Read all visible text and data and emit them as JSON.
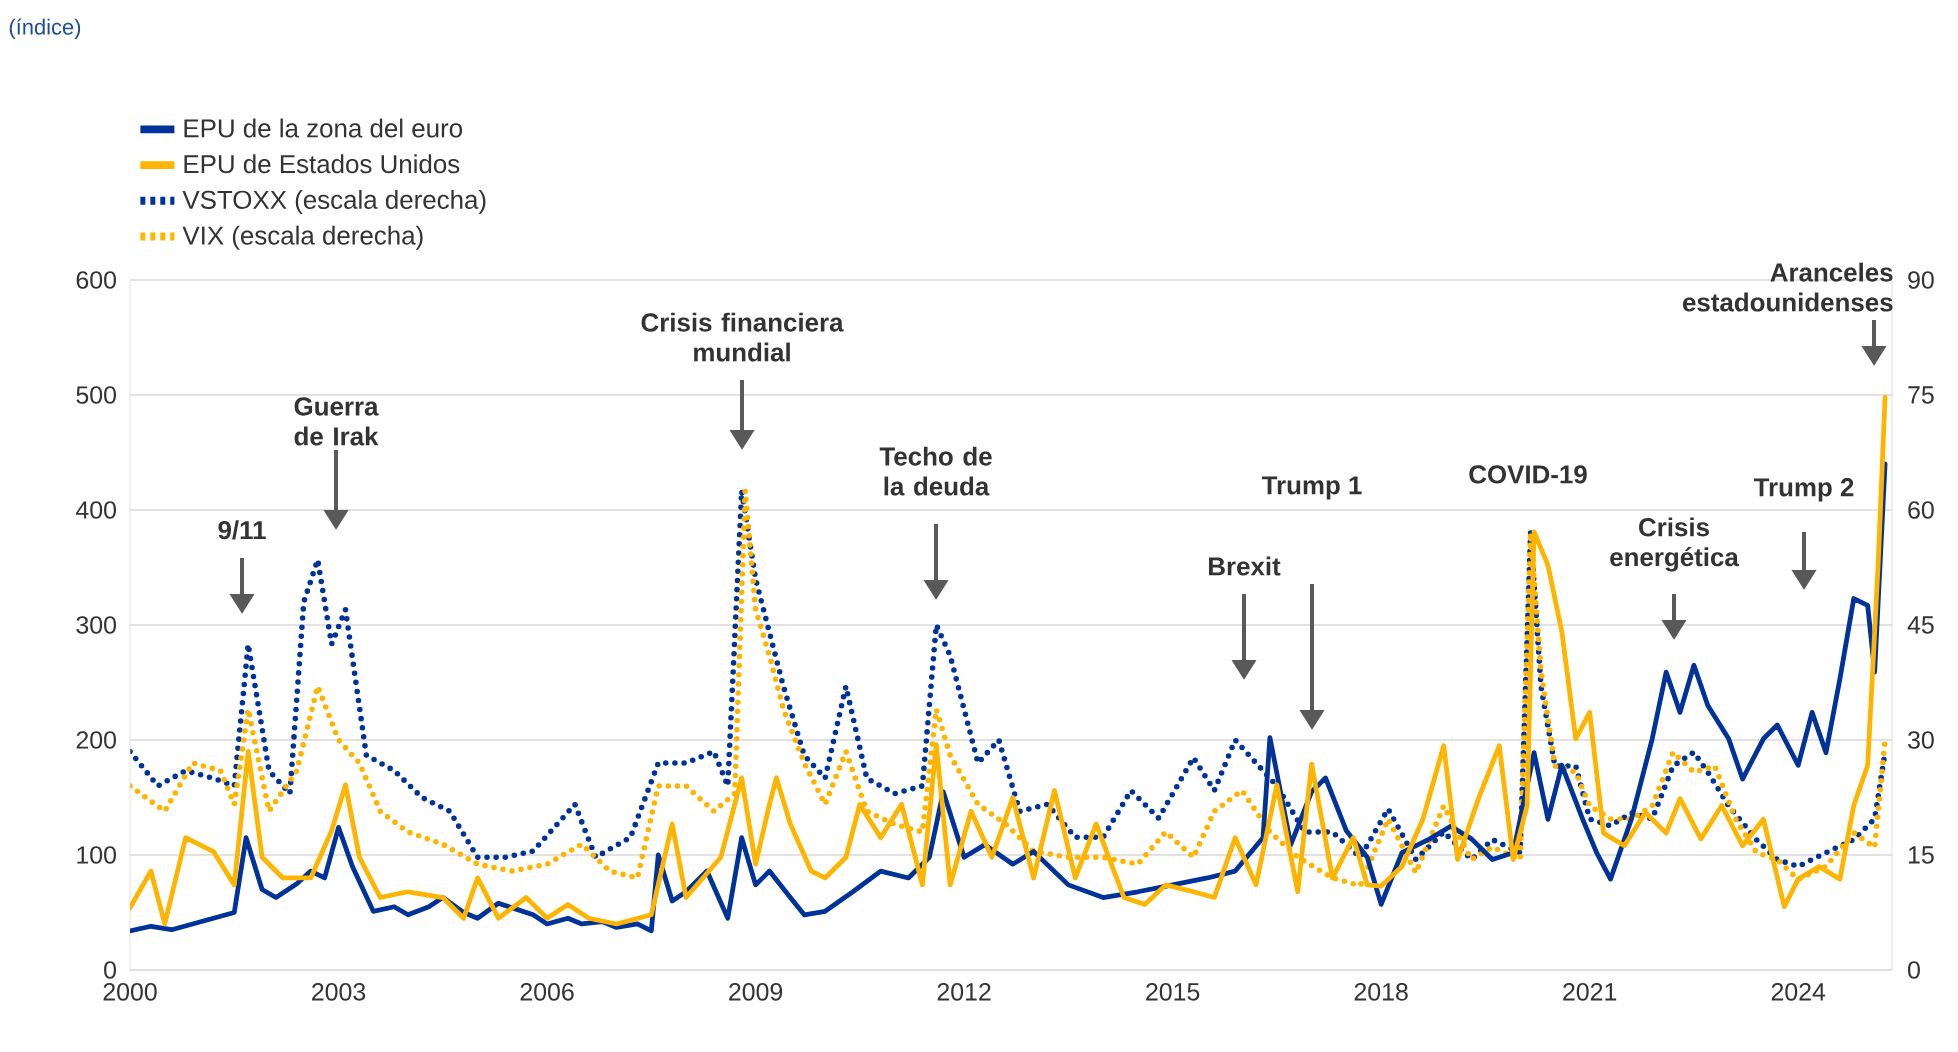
{
  "chart_data": {
    "type": "line",
    "xlim": [
      2000,
      2025.35
    ],
    "xticks": [
      2000,
      2003,
      2006,
      2009,
      2012,
      2015,
      2018,
      2021,
      2024
    ],
    "ylim": [
      0,
      600
    ],
    "yticks": [
      0,
      100,
      200,
      300,
      400,
      500,
      600
    ],
    "y2lim": [
      0,
      90
    ],
    "y2ticks": [
      0,
      15,
      30,
      45,
      60,
      75,
      90
    ],
    "grid": true,
    "legend": "top left",
    "annotations": [
      "(índice)",
      "9/11",
      "Guerra de Irak",
      "Crisis financiera mundial",
      "Techo de la deuda",
      "Brexit",
      "Trump 1",
      "COVID-19",
      "Crisis energética",
      "Trump 2",
      "Aranceles estadounidenses"
    ],
    "series": [
      {
        "name": "EPU de la zona del euro",
        "color": "#003399",
        "line_style": "solid",
        "x": [
          2000,
          2000.3,
          2000.6,
          2000.9,
          2001.2,
          2001.5,
          2001.67,
          2001.9,
          2002.1,
          2002.4,
          2002.6,
          2002.8,
          2003.0,
          2003.2,
          2003.5,
          2003.8,
          2004.0,
          2004.3,
          2004.5,
          2004.8,
          2005.0,
          2005.3,
          2005.5,
          2005.8,
          2006.0,
          2006.3,
          2006.5,
          2006.8,
          2007.0,
          2007.3,
          2007.5,
          2007.6,
          2007.8,
          2008.0,
          2008.3,
          2008.6,
          2008.8,
          2009.0,
          2009.2,
          2009.5,
          2009.7,
          2010.0,
          2010.4,
          2010.8,
          2011.2,
          2011.5,
          2011.7,
          2012.0,
          2012.3,
          2012.7,
          2013.0,
          2013.5,
          2014.0,
          2014.5,
          2015.0,
          2015.5,
          2015.9,
          2016.3,
          2016.4,
          2016.7,
          2017.0,
          2017.2,
          2017.5,
          2017.8,
          2018.0,
          2018.3,
          2018.7,
          2019.0,
          2019.3,
          2019.6,
          2019.9,
          2020.2,
          2020.4,
          2020.6,
          2020.9,
          2021.1,
          2021.3,
          2021.6,
          2021.9,
          2022.1,
          2022.3,
          2022.5,
          2022.7,
          2023.0,
          2023.2,
          2023.5,
          2023.7,
          2024.0,
          2024.2,
          2024.4,
          2024.6,
          2024.8,
          2025.0,
          2025.1,
          2025.25
        ],
        "values": [
          34,
          38,
          35,
          40,
          45,
          50,
          115,
          70,
          63,
          75,
          86,
          80,
          124,
          90,
          51,
          55,
          48,
          55,
          63,
          50,
          45,
          58,
          54,
          48,
          40,
          45,
          40,
          42,
          37,
          40,
          34,
          100,
          60,
          68,
          86,
          45,
          115,
          74,
          86,
          63,
          48,
          51,
          68,
          86,
          80,
          98,
          155,
          98,
          109,
          92,
          103,
          74,
          63,
          68,
          74,
          80,
          86,
          115,
          202,
          109,
          155,
          167,
          121,
          98,
          57,
          102,
          114,
          125,
          114,
          96,
          102,
          189,
          131,
          178,
          131,
          102,
          79,
          131,
          201,
          259,
          224,
          265,
          230,
          201,
          166,
          201,
          213,
          178,
          224,
          189,
          253,
          323,
          317,
          259,
          440
        ]
      },
      {
        "name": "EPU de Estados Unidos",
        "color": "#ffb400",
        "line_style": "solid",
        "x": [
          2000,
          2000.3,
          2000.5,
          2000.8,
          2001.2,
          2001.5,
          2001.7,
          2001.9,
          2002.2,
          2002.6,
          2002.9,
          2003.1,
          2003.3,
          2003.6,
          2004.0,
          2004.5,
          2004.8,
          2005.0,
          2005.3,
          2005.7,
          2006.0,
          2006.3,
          2006.6,
          2007.0,
          2007.5,
          2007.8,
          2008.0,
          2008.5,
          2008.8,
          2009.0,
          2009.2,
          2009.3,
          2009.5,
          2009.8,
          2010.0,
          2010.3,
          2010.5,
          2010.8,
          2011.1,
          2011.4,
          2011.6,
          2011.8,
          2012.1,
          2012.4,
          2012.7,
          2013.0,
          2013.3,
          2013.6,
          2013.9,
          2014.3,
          2014.6,
          2014.9,
          2015.3,
          2015.6,
          2015.9,
          2016.2,
          2016.5,
          2016.8,
          2017.0,
          2017.3,
          2017.6,
          2017.8,
          2018.0,
          2018.3,
          2018.6,
          2018.9,
          2019.1,
          2019.4,
          2019.7,
          2019.9,
          2020.1,
          2020.2,
          2020.4,
          2020.6,
          2020.8,
          2021.0,
          2021.2,
          2021.5,
          2021.8,
          2022.1,
          2022.3,
          2022.6,
          2022.9,
          2023.2,
          2023.5,
          2023.8,
          2024.0,
          2024.3,
          2024.6,
          2024.8,
          2025.0,
          2025.15,
          2025.25
        ],
        "values": [
          54,
          86,
          40,
          115,
          103,
          74,
          190,
          98,
          80,
          80,
          121,
          161,
          98,
          63,
          68,
          63,
          45,
          80,
          45,
          63,
          45,
          57,
          45,
          40,
          48,
          127,
          63,
          98,
          167,
          92,
          144,
          167,
          127,
          86,
          80,
          98,
          144,
          115,
          144,
          74,
          196,
          74,
          138,
          98,
          150,
          80,
          156,
          80,
          127,
          63,
          57,
          74,
          68,
          63,
          115,
          74,
          161,
          68,
          179,
          80,
          115,
          74,
          73,
          90,
          131,
          195,
          96,
          149,
          195,
          96,
          143,
          381,
          352,
          294,
          201,
          224,
          119,
          108,
          137,
          119,
          149,
          114,
          143,
          108,
          131,
          55,
          79,
          90,
          79,
          143,
          178,
          352,
          498
        ]
      },
      {
        "name": "VSTOXX (escala derecha)",
        "color": "#003399",
        "line_style": "dotted",
        "axis": "y2",
        "x": [
          2000,
          2000.4,
          2000.8,
          2001.2,
          2001.5,
          2001.7,
          2002.0,
          2002.3,
          2002.5,
          2002.7,
          2002.9,
          2003.1,
          2003.4,
          2003.8,
          2004.2,
          2004.6,
          2005.0,
          2005.4,
          2005.8,
          2006.4,
          2006.7,
          2007.2,
          2007.6,
          2008.0,
          2008.4,
          2008.6,
          2008.8,
          2009.0,
          2009.2,
          2009.4,
          2009.7,
          2010.0,
          2010.3,
          2010.6,
          2011.0,
          2011.4,
          2011.6,
          2011.8,
          2012.2,
          2012.5,
          2012.8,
          2013.2,
          2013.6,
          2014.0,
          2014.4,
          2014.8,
          2015.3,
          2015.6,
          2015.9,
          2016.2,
          2016.5,
          2016.9,
          2017.3,
          2017.7,
          2018.1,
          2018.5,
          2018.9,
          2019.3,
          2019.6,
          2020.0,
          2020.15,
          2020.3,
          2020.5,
          2020.8,
          2021.0,
          2021.3,
          2021.6,
          2021.9,
          2022.2,
          2022.5,
          2022.7,
          2023.0,
          2023.4,
          2023.7,
          2024.0,
          2024.4,
          2024.8,
          2025.1,
          2025.25
        ],
        "values": [
          28.5,
          24,
          26,
          25,
          24,
          42.5,
          26,
          23,
          48,
          53.5,
          42.5,
          47,
          28,
          26,
          22.5,
          20.7,
          14.7,
          14.7,
          15.5,
          21.6,
          14.7,
          17.3,
          27,
          27,
          28.5,
          24,
          62.5,
          51,
          44,
          37,
          28,
          25,
          37,
          25,
          23,
          24,
          45,
          41,
          27,
          30,
          20.7,
          21.6,
          17.3,
          17.3,
          23.4,
          19.8,
          27.7,
          23.4,
          30,
          27,
          24,
          18,
          18,
          14.7,
          21,
          14.4,
          18,
          14.4,
          17,
          15.3,
          57,
          37,
          26.6,
          26.6,
          19.7,
          18.8,
          20.5,
          19.7,
          26.6,
          28.4,
          25.8,
          21.4,
          17,
          14.4,
          13.5,
          15.3,
          17,
          19.7,
          28.4
        ]
      },
      {
        "name": "VIX (escala derecha)",
        "color": "#ffb400",
        "line_style": "dotted",
        "axis": "y2",
        "x": [
          2000,
          2000.5,
          2000.9,
          2001.3,
          2001.5,
          2001.7,
          2002.0,
          2002.4,
          2002.7,
          2003.0,
          2003.3,
          2003.6,
          2004.0,
          2004.5,
          2005.0,
          2005.5,
          2006.0,
          2006.5,
          2006.9,
          2007.3,
          2007.6,
          2008.0,
          2008.4,
          2008.7,
          2008.85,
          2009.0,
          2009.2,
          2009.4,
          2009.7,
          2010.0,
          2010.3,
          2010.6,
          2011.0,
          2011.4,
          2011.6,
          2011.8,
          2012.2,
          2012.6,
          2013.0,
          2013.5,
          2014.0,
          2014.5,
          2014.9,
          2015.3,
          2015.6,
          2016.0,
          2016.4,
          2016.8,
          2017.3,
          2017.7,
          2018.1,
          2018.5,
          2018.9,
          2019.3,
          2019.6,
          2020.0,
          2020.15,
          2020.3,
          2020.5,
          2020.8,
          2021.0,
          2021.3,
          2021.6,
          2021.9,
          2022.2,
          2022.5,
          2022.8,
          2023.1,
          2023.4,
          2023.7,
          2024.0,
          2024.4,
          2024.8,
          2025.1,
          2025.25
        ],
        "values": [
          24,
          20.7,
          27,
          26,
          21.6,
          34,
          20.7,
          26,
          37,
          30,
          27,
          20.7,
          18,
          16.4,
          13.8,
          12.9,
          13.8,
          16.4,
          12.9,
          12,
          24,
          24,
          20.7,
          23,
          62.5,
          47,
          41,
          34,
          27,
          21.6,
          28.5,
          20.7,
          19,
          18,
          34,
          28,
          21.6,
          19,
          15.5,
          14.7,
          14.7,
          13.8,
          18,
          14.7,
          20.7,
          23.4,
          18,
          14.7,
          12,
          11,
          19.7,
          12.7,
          21.4,
          14.4,
          16,
          14.4,
          57,
          39,
          26.6,
          25.8,
          21.4,
          19.7,
          19.7,
          21.4,
          28.4,
          25.8,
          26.6,
          19.7,
          15.3,
          14.4,
          11.8,
          13.5,
          17.9,
          16,
          30
        ]
      }
    ]
  }
}
